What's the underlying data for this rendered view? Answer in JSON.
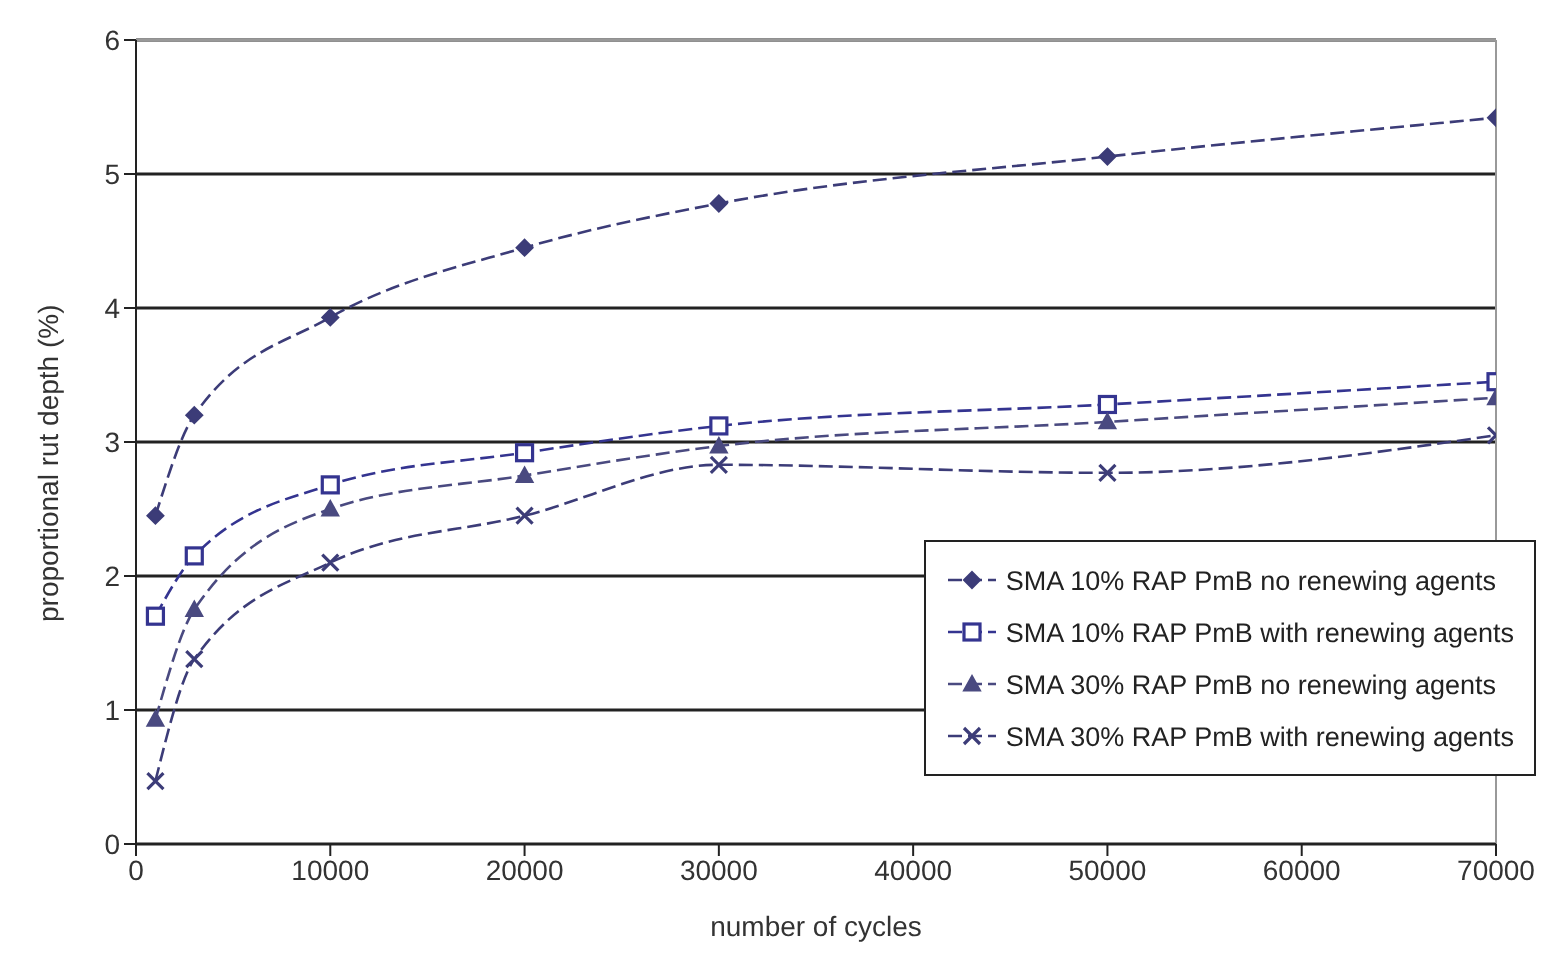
{
  "chart_data": {
    "type": "line",
    "xlabel": "number of cycles",
    "ylabel": "proportional rut depth (%)",
    "x": [
      1000,
      3000,
      10000,
      20000,
      30000,
      50000,
      70000
    ],
    "series": [
      {
        "name": "SMA  10% RAP  PmB no renewing agents",
        "color": "#3c3c78",
        "marker": "diamond",
        "values": [
          2.45,
          3.2,
          3.93,
          4.45,
          4.78,
          5.13,
          5.42
        ]
      },
      {
        "name": "SMA  10% RAP  PmB with renewing agents",
        "color": "#343490",
        "marker": "square",
        "values": [
          1.7,
          2.15,
          2.68,
          2.92,
          3.12,
          3.28,
          3.45
        ]
      },
      {
        "name": "SMA 30% RAP PmB no renewing agents",
        "color": "#4a4a80",
        "marker": "triangle",
        "values": [
          0.93,
          1.75,
          2.5,
          2.75,
          2.97,
          3.15,
          3.33
        ]
      },
      {
        "name": "SMA 30% RAP PmB with renewing agents",
        "color": "#3c3c78",
        "marker": "cross",
        "values": [
          0.47,
          1.38,
          2.1,
          2.45,
          2.83,
          2.77,
          3.05
        ]
      }
    ],
    "xlim": [
      0,
      70000
    ],
    "xticks": [
      0,
      10000,
      20000,
      30000,
      40000,
      50000,
      60000,
      70000
    ],
    "ylim": [
      0,
      6
    ],
    "yticks": [
      0,
      1,
      2,
      3,
      4,
      5,
      6
    ],
    "grid": "y",
    "legend": "bottom right",
    "line_style": "dashed"
  }
}
